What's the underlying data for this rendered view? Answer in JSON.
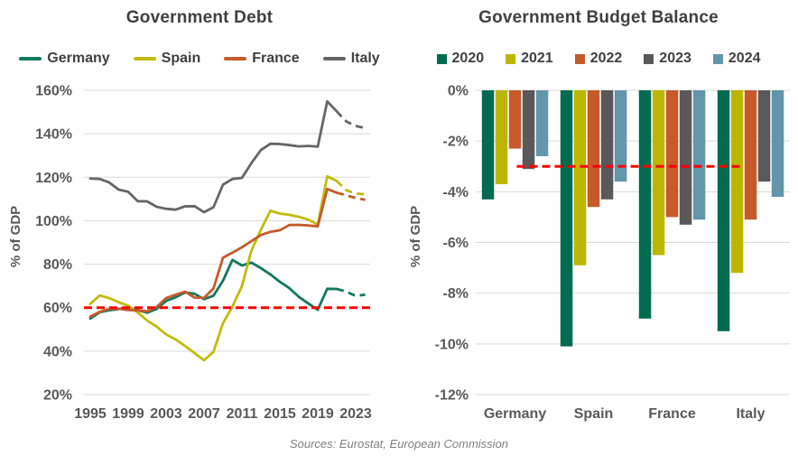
{
  "page": {
    "background": "#FFFFFF",
    "source_note": "Sources: Eurostat, European Commission"
  },
  "chart_data": [
    {
      "id": "government-debt",
      "type": "line",
      "title": "Government Debt",
      "ylabel": "% of GDP",
      "ylim": [
        20,
        160
      ],
      "y_ticks": [
        160,
        140,
        120,
        100,
        80,
        60,
        40,
        20
      ],
      "y_tick_suffix": "%",
      "x_ticks": [
        1995,
        1999,
        2003,
        2007,
        2011,
        2015,
        2019,
        2023
      ],
      "years": [
        1995,
        1996,
        1997,
        1998,
        1999,
        2000,
        2001,
        2002,
        2003,
        2004,
        2005,
        2006,
        2007,
        2008,
        2009,
        2010,
        2011,
        2012,
        2013,
        2014,
        2015,
        2016,
        2017,
        2018,
        2019,
        2020,
        2021,
        2022,
        2023,
        2024
      ],
      "solid_until": 2021,
      "grid": true,
      "grid_color": "#D9D9D9",
      "legend_position": "top",
      "reference_line": {
        "value": 60,
        "color": "#FF0000",
        "style": "dashed"
      },
      "series": [
        {
          "name": "Germany",
          "color": "#0E7A5F",
          "values": [
            55.0,
            57.9,
            58.8,
            59.4,
            60.0,
            58.9,
            57.7,
            59.4,
            63.1,
            64.8,
            67.0,
            66.4,
            63.9,
            65.5,
            72.4,
            82.0,
            79.4,
            80.7,
            78.2,
            75.3,
            71.9,
            69.0,
            65.0,
            61.9,
            59.0,
            68.7,
            68.6,
            67.4,
            65.4,
            66.0
          ]
        },
        {
          "name": "Spain",
          "color": "#C3BB0B",
          "values": [
            61.7,
            65.6,
            64.4,
            62.5,
            60.9,
            57.8,
            54.1,
            51.3,
            47.7,
            45.4,
            42.4,
            39.1,
            35.8,
            39.7,
            52.8,
            60.5,
            69.9,
            86.3,
            95.8,
            104.6,
            103.3,
            102.7,
            101.8,
            100.5,
            98.2,
            120.4,
            118.3,
            114.0,
            112.5,
            112.1
          ]
        },
        {
          "name": "France",
          "color": "#C65A2B",
          "values": [
            55.8,
            58.1,
            59.4,
            59.5,
            58.9,
            58.7,
            58.3,
            60.3,
            64.4,
            65.9,
            67.4,
            64.6,
            64.5,
            68.8,
            83.0,
            85.3,
            87.8,
            90.6,
            93.4,
            94.9,
            95.6,
            98.0,
            98.1,
            97.8,
            97.4,
            114.6,
            112.9,
            111.7,
            110.5,
            109.6
          ]
        },
        {
          "name": "Italy",
          "color": "#666666",
          "values": [
            119.4,
            119.2,
            117.6,
            114.3,
            113.3,
            109.0,
            108.9,
            106.4,
            105.5,
            105.1,
            106.6,
            106.7,
            103.9,
            106.2,
            116.6,
            119.2,
            119.7,
            126.5,
            132.5,
            135.4,
            135.3,
            134.8,
            134.2,
            134.4,
            134.1,
            154.9,
            150.3,
            145.7,
            143.6,
            142.6
          ]
        }
      ]
    },
    {
      "id": "government-budget-balance",
      "type": "bar",
      "title": "Government Budget Balance",
      "ylabel": "% of GDP",
      "ylim": [
        -12,
        0
      ],
      "y_ticks": [
        0,
        -2,
        -4,
        -6,
        -8,
        -10,
        -12
      ],
      "y_tick_suffix": "%",
      "categories": [
        "Germany",
        "Spain",
        "France",
        "Italy"
      ],
      "grid": true,
      "grid_color": "#D9D9D9",
      "legend_position": "top",
      "reference_line": {
        "value": -3,
        "color": "#FF0000",
        "style": "dashed"
      },
      "series": [
        {
          "name": "2020",
          "color": "#006B50",
          "values": [
            -4.3,
            -10.1,
            -9.0,
            -9.5
          ]
        },
        {
          "name": "2021",
          "color": "#BCB600",
          "values": [
            -3.7,
            -6.9,
            -6.5,
            -7.2
          ]
        },
        {
          "name": "2022",
          "color": "#C65A2B",
          "values": [
            -2.3,
            -4.6,
            -5.0,
            -5.1
          ]
        },
        {
          "name": "2023",
          "color": "#595959",
          "values": [
            -3.1,
            -4.3,
            -5.3,
            -3.6
          ]
        },
        {
          "name": "2024",
          "color": "#6296AA",
          "values": [
            -2.6,
            -3.6,
            -5.1,
            -4.2
          ]
        }
      ]
    }
  ]
}
